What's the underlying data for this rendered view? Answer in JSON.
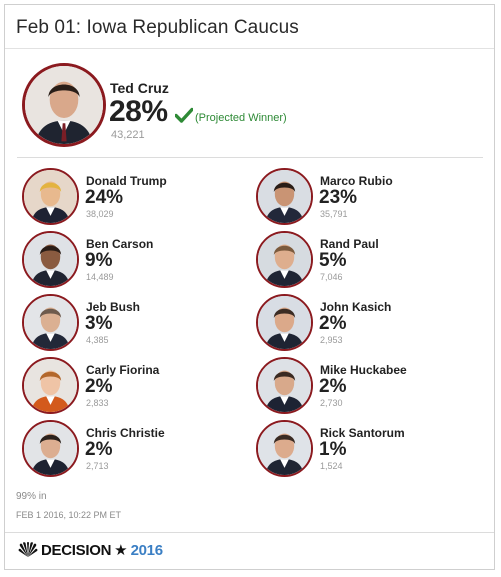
{
  "header": {
    "title": "Feb 01: Iowa Republican Caucus"
  },
  "winner": {
    "name": "Ted Cruz",
    "pct": "28%",
    "status": "(Projected Winner)",
    "votes": "43,221",
    "check_icon": "check-icon",
    "accent": "#2e8a36"
  },
  "candidates": [
    {
      "name": "Donald Trump",
      "pct": "24%",
      "votes": "38,029"
    },
    {
      "name": "Marco Rubio",
      "pct": "23%",
      "votes": "35,791"
    },
    {
      "name": "Ben Carson",
      "pct": "9%",
      "votes": "14,489"
    },
    {
      "name": "Rand Paul",
      "pct": "5%",
      "votes": "7,046"
    },
    {
      "name": "Jeb Bush",
      "pct": "3%",
      "votes": "4,385"
    },
    {
      "name": "John Kasich",
      "pct": "2%",
      "votes": "2,953"
    },
    {
      "name": "Carly Fiorina",
      "pct": "2%",
      "votes": "2,833"
    },
    {
      "name": "Mike Huckabee",
      "pct": "2%",
      "votes": "2,730"
    },
    {
      "name": "Chris Christie",
      "pct": "2%",
      "votes": "2,713"
    },
    {
      "name": "Rick Santorum",
      "pct": "1%",
      "votes": "1,524"
    }
  ],
  "reporting": "99% in",
  "timestamp": "FEB 1 2016, 10:22 PM ET",
  "footer": {
    "brand_icon": "peacock-icon",
    "brand_a": "DECISION",
    "brand_star": "★",
    "brand_b": "2016"
  },
  "colors": {
    "avatar_ring": "#8b1a1f",
    "brand_blue": "#3b7fc4",
    "winner_green": "#2e8a36"
  }
}
